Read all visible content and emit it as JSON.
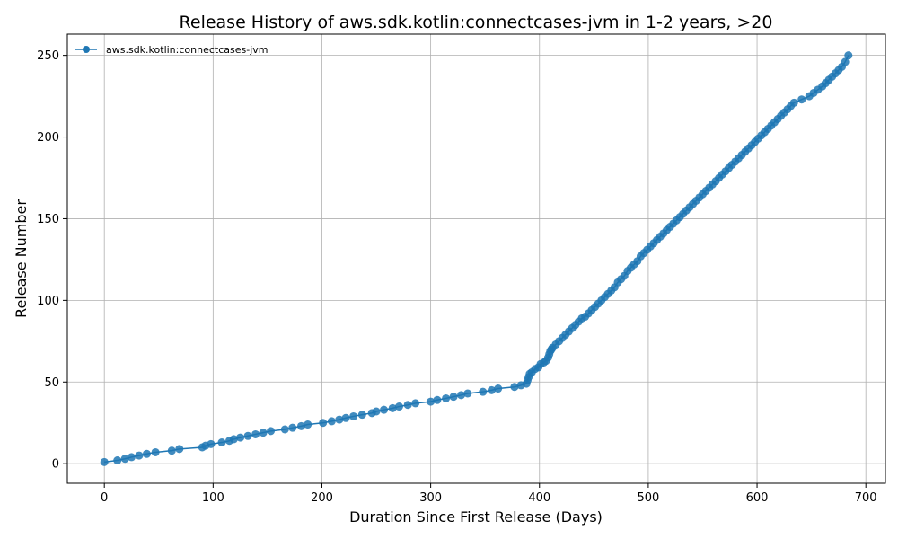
{
  "chart_data": {
    "type": "line",
    "title": "Release History of aws.sdk.kotlin:connectcases-jvm in 1-2 years, >20",
    "xlabel": "Duration Since First Release (Days)",
    "ylabel": "Release Number",
    "xlim": [
      -34,
      718
    ],
    "ylim": [
      -12,
      263
    ],
    "xticks": [
      0,
      100,
      200,
      300,
      400,
      500,
      600,
      700
    ],
    "yticks": [
      0,
      50,
      100,
      150,
      200,
      250
    ],
    "grid": true,
    "legend_position": "top-left",
    "series": [
      {
        "name": "aws.sdk.kotlin:connectcases-jvm",
        "color": "#1f77b4",
        "marker": "circle",
        "x": [
          0,
          12,
          19,
          25,
          32,
          39,
          47,
          62,
          69,
          90,
          93,
          98,
          108,
          115,
          119,
          125,
          132,
          139,
          146,
          153,
          166,
          173,
          181,
          187,
          201,
          209,
          216,
          222,
          229,
          237,
          246,
          250,
          257,
          265,
          271,
          279,
          286,
          300,
          306,
          314,
          321,
          328,
          334,
          348,
          356,
          362,
          377,
          383,
          388,
          389,
          390,
          391,
          393,
          396,
          399,
          401,
          404,
          406,
          408,
          409,
          410,
          411,
          412,
          415,
          418,
          421,
          424,
          427,
          430,
          433,
          436,
          439,
          442,
          445,
          448,
          451,
          454,
          457,
          460,
          463,
          466,
          469,
          472,
          475,
          478,
          481,
          484,
          487,
          490,
          493,
          496,
          499,
          502,
          505,
          508,
          511,
          514,
          517,
          520,
          523,
          526,
          529,
          532,
          535,
          538,
          541,
          544,
          547,
          550,
          553,
          556,
          559,
          562,
          565,
          568,
          571,
          574,
          577,
          580,
          583,
          586,
          589,
          592,
          595,
          598,
          601,
          604,
          607,
          610,
          613,
          616,
          619,
          622,
          625,
          628,
          631,
          634,
          641,
          648,
          652,
          656,
          660,
          663,
          666,
          669,
          672,
          675,
          678,
          681,
          684
        ],
        "y": [
          1,
          2,
          3,
          4,
          5,
          6,
          7,
          8,
          9,
          10,
          11,
          12,
          13,
          14,
          15,
          16,
          17,
          18,
          19,
          20,
          21,
          22,
          23,
          24,
          25,
          26,
          27,
          28,
          29,
          30,
          31,
          32,
          33,
          34,
          35,
          36,
          37,
          38,
          39,
          40,
          41,
          42,
          43,
          44,
          45,
          46,
          47,
          48,
          49,
          51,
          53,
          55,
          56,
          58,
          59,
          61,
          62,
          63,
          65,
          67,
          69,
          70,
          71,
          73,
          75,
          77,
          79,
          81,
          83,
          85,
          87,
          89,
          90,
          92,
          94,
          96,
          98,
          100,
          102,
          104,
          106,
          108,
          111,
          113,
          115,
          118,
          120,
          122,
          124,
          127,
          129,
          131,
          133,
          135,
          137,
          139,
          141,
          143,
          145,
          147,
          149,
          151,
          153,
          155,
          157,
          159,
          161,
          163,
          165,
          167,
          169,
          171,
          173,
          175,
          177,
          179,
          181,
          183,
          185,
          187,
          189,
          191,
          193,
          195,
          197,
          199,
          201,
          203,
          205,
          207,
          209,
          211,
          213,
          215,
          217,
          219,
          221,
          223,
          225,
          227,
          229,
          231,
          233,
          235,
          237,
          239,
          241,
          243,
          246,
          250
        ]
      }
    ]
  }
}
